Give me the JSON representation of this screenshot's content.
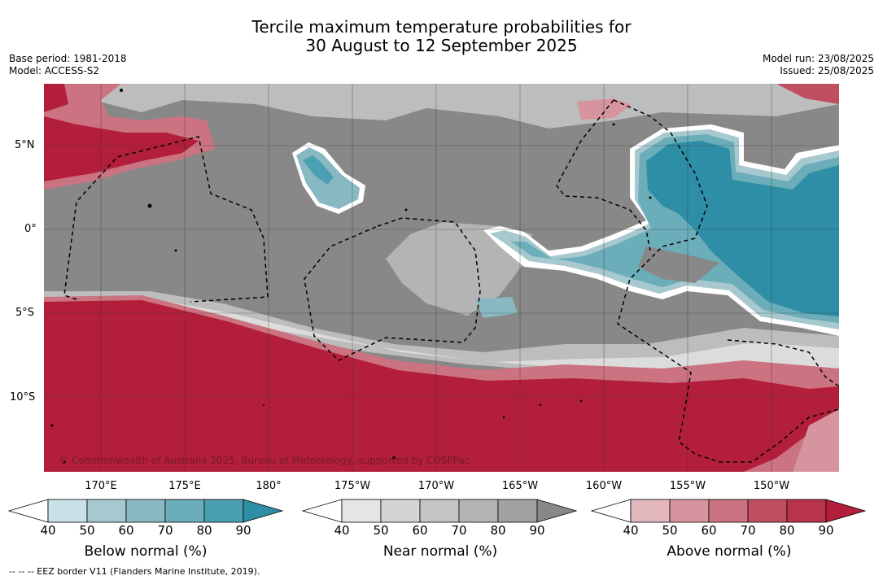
{
  "header": {
    "title_line1": "Tercile maximum temperature probabilities for",
    "title_line2": "30 August to 12 September 2025",
    "base_period": "Base period: 1981-2018",
    "model": "Model: ACCESS-S2",
    "model_run": "Model run: 23/08/2025",
    "issued": "Issued: 25/08/2025"
  },
  "map": {
    "lat_labels": [
      "5°N",
      "0°",
      "5°S",
      "10°S"
    ],
    "lon_labels": [
      "170°E",
      "175°E",
      "180°",
      "175°W",
      "170°W",
      "165°W",
      "160°W",
      "155°W",
      "150°W"
    ],
    "copyright": "© Commonwealth of Australia 2025, Bureau of Meteorology, supported by COSPPac",
    "colors": {
      "above": "#b31e3b",
      "near": "#888888",
      "below": "#2e8ea5",
      "eez": "#000000"
    }
  },
  "legends": [
    {
      "label": "Below normal (%)",
      "ticks": [
        "40",
        "50",
        "60",
        "70",
        "80",
        "90"
      ],
      "colors": [
        "#ffffff",
        "#c9e1e7",
        "#a6c8ce",
        "#88b9c3",
        "#6badb9",
        "#4a9fb0",
        "#2e8ea5"
      ]
    },
    {
      "label": "Near normal (%)",
      "ticks": [
        "40",
        "50",
        "60",
        "70",
        "80",
        "90"
      ],
      "colors": [
        "#ffffff",
        "#e5e5e5",
        "#d4d4d4",
        "#c4c4c4",
        "#b4b4b4",
        "#a2a2a2",
        "#888888"
      ]
    },
    {
      "label": "Above normal (%)",
      "ticks": [
        "40",
        "50",
        "60",
        "70",
        "80",
        "90"
      ],
      "colors": [
        "#ffffff",
        "#e2b8be",
        "#d6959e",
        "#cb7380",
        "#c04e61",
        "#b8344c",
        "#b31e3b"
      ]
    }
  ],
  "footnote": "--  --  -- EEZ border V11 (Flanders Marine Institute, 2019)."
}
